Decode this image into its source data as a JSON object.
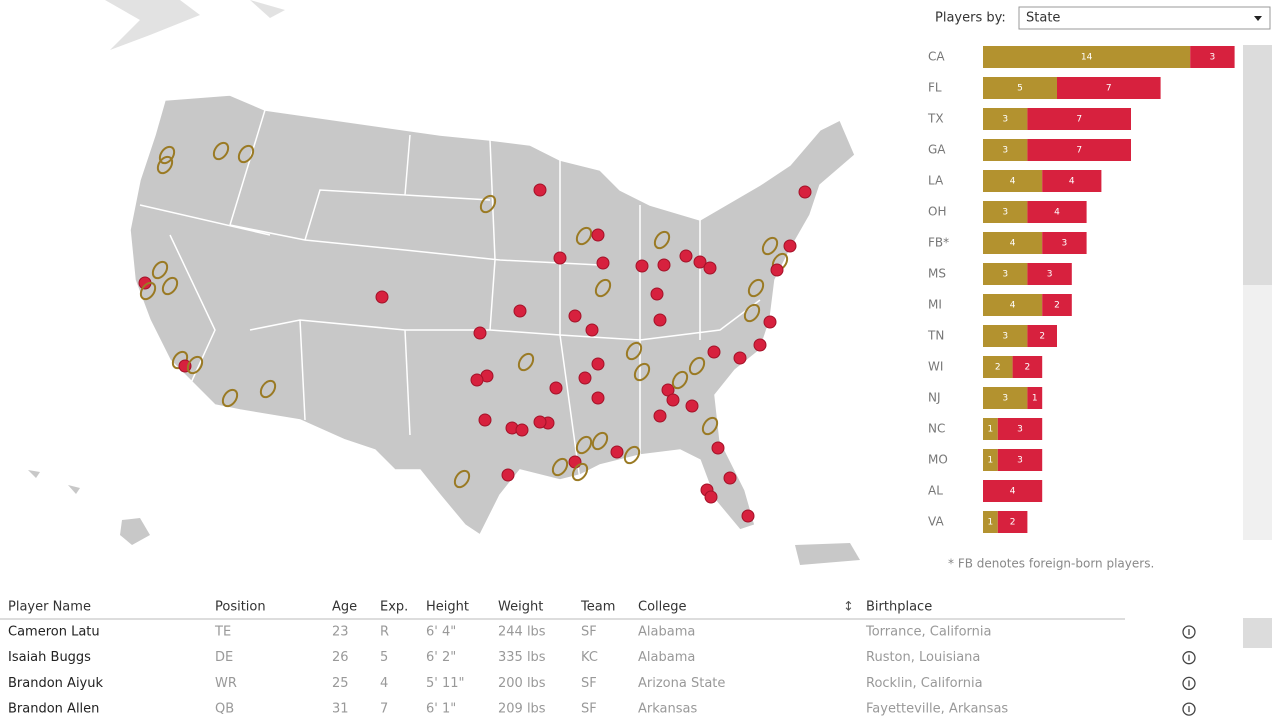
{
  "controls": {
    "label": "Players by:",
    "selected": "State"
  },
  "chart_data": {
    "type": "bar",
    "orientation": "horizontal",
    "stacked": true,
    "categories": [
      "CA",
      "FL",
      "TX",
      "GA",
      "LA",
      "OH",
      "FB*",
      "MS",
      "MI",
      "TN",
      "WI",
      "NJ",
      "NC",
      "MO",
      "AL",
      "VA"
    ],
    "series": [
      {
        "color": "#b3922f",
        "values": [
          14,
          5,
          3,
          3,
          4,
          3,
          4,
          3,
          4,
          3,
          2,
          3,
          1,
          1,
          null,
          1
        ]
      },
      {
        "color": "#d7213e",
        "values": [
          3,
          7,
          7,
          7,
          4,
          4,
          3,
          3,
          2,
          2,
          2,
          1,
          3,
          3,
          4,
          2
        ]
      }
    ]
  },
  "footnote": "* FB denotes foreign-born players.",
  "table": {
    "columns": [
      "Player Name",
      "Position",
      "Age",
      "Exp.",
      "Height",
      "Weight",
      "Team",
      "College",
      "Birthplace"
    ],
    "rows": [
      [
        "Cameron Latu",
        "TE",
        "23",
        "R",
        "6' 4\"",
        "244 lbs",
        "SF",
        "Alabama",
        "Torrance, California"
      ],
      [
        "Isaiah Buggs",
        "DE",
        "26",
        "5",
        "6' 2\"",
        "335 lbs",
        "KC",
        "Alabama",
        "Ruston, Louisiana"
      ],
      [
        "Brandon Aiyuk",
        "WR",
        "25",
        "4",
        "5' 11\"",
        "200 lbs",
        "SF",
        "Arizona State",
        "Rocklin, California"
      ],
      [
        "Brandon Allen",
        "QB",
        "31",
        "7",
        "6' 1\"",
        "209 lbs",
        "SF",
        "Arkansas",
        "Fayetteville, Arkansas"
      ]
    ]
  }
}
